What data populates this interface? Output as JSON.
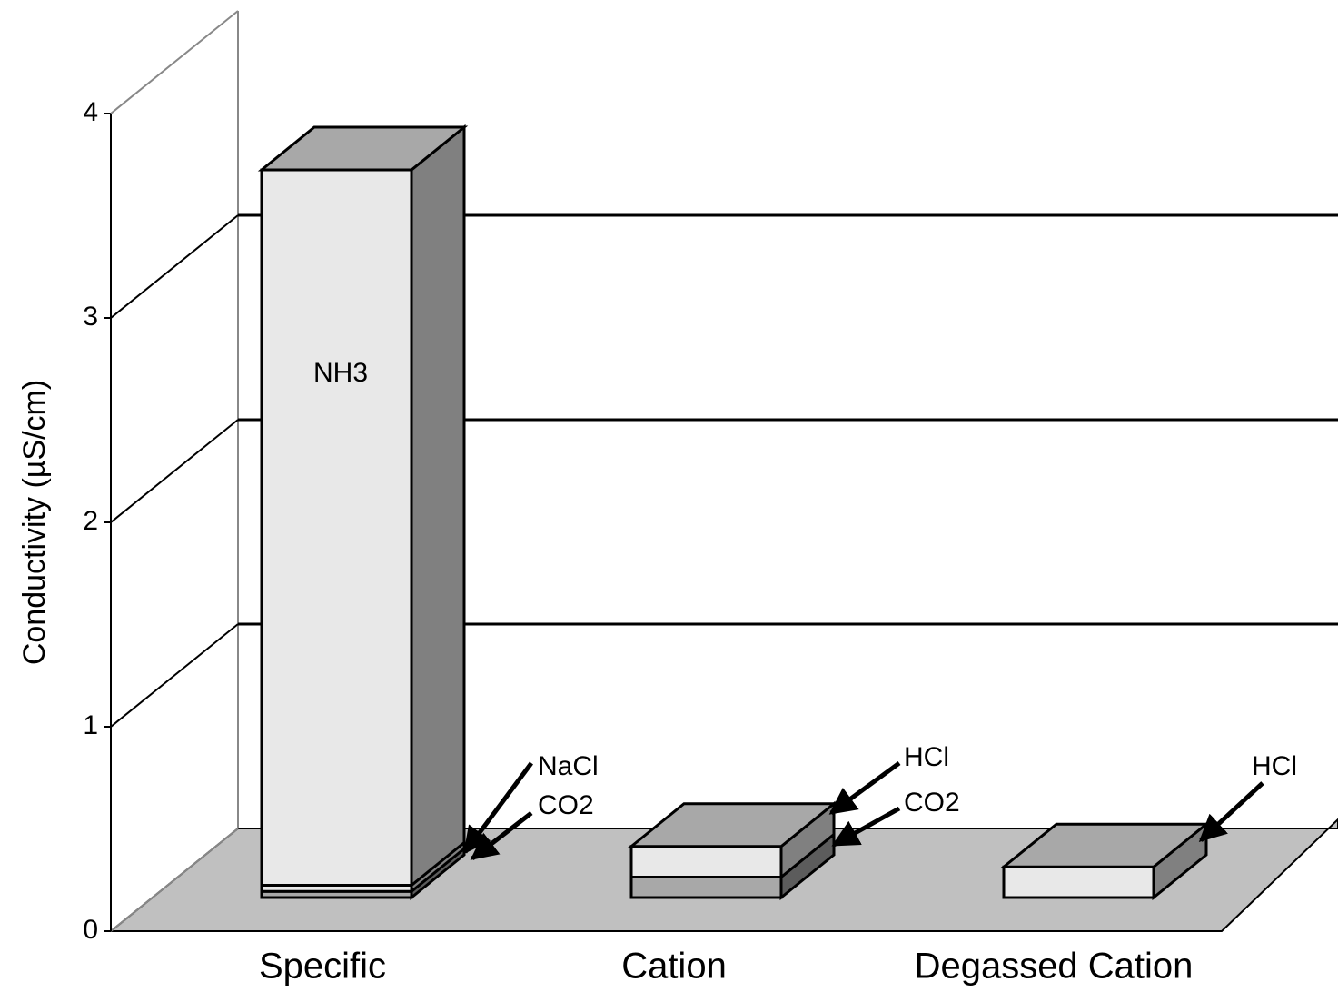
{
  "chart_data": {
    "type": "bar3d_stacked",
    "y_label": "Conductivity (µS/cm)",
    "categories": [
      "Specific",
      "Cation",
      "Degassed Cation"
    ],
    "series": [
      {
        "name": "CO2",
        "color": "#a8a8a8",
        "values": [
          0.03,
          0.1,
          null
        ]
      },
      {
        "name": "NaCl",
        "color": "#e8e8e8",
        "values": [
          0.03,
          null,
          null
        ]
      },
      {
        "name": "NH3",
        "color": "#e8e8e8",
        "values": [
          3.5,
          null,
          null
        ]
      },
      {
        "name": "HCl",
        "color": "#e8e8e8",
        "values": [
          null,
          0.15,
          0.15
        ]
      }
    ],
    "ylim": [
      0,
      4
    ],
    "yticks": [
      0,
      1,
      2,
      3,
      4
    ],
    "grid": true
  }
}
